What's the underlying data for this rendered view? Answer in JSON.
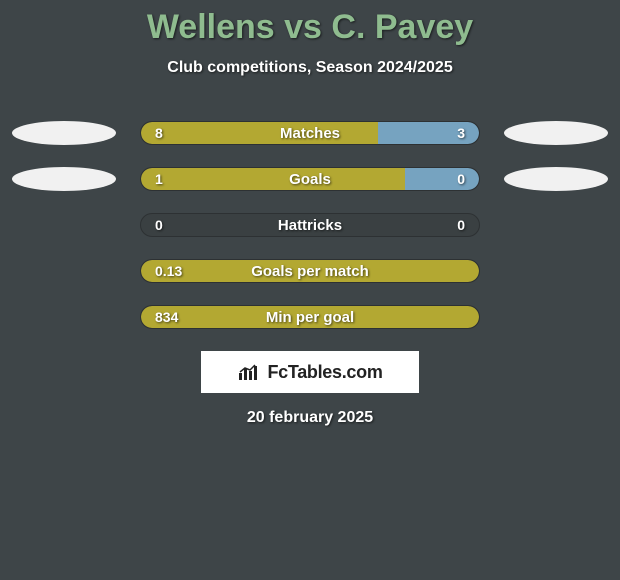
{
  "title": "Wellens vs C. Pavey",
  "subtitle": "Club competitions, Season 2024/2025",
  "date": "20 february 2025",
  "colors": {
    "background": "#3e4548",
    "title": "#8fbc8f",
    "bar_left": "#b3a832",
    "bar_right": "#76a3c0",
    "bar_empty": "#3a4042",
    "text": "#ffffff",
    "logo_bg": "#ffffff",
    "logo_text": "#222222"
  },
  "logo_text": "FcTables.com",
  "stats": [
    {
      "label": "Matches",
      "left_value": "8",
      "right_value": "3",
      "left_pct": 70,
      "right_pct": 30,
      "show_avatars": true,
      "right_color": "#76a3c0"
    },
    {
      "label": "Goals",
      "left_value": "1",
      "right_value": "0",
      "left_pct": 78,
      "right_pct": 22,
      "show_avatars": true,
      "right_color": "#76a3c0"
    },
    {
      "label": "Hattricks",
      "left_value": "0",
      "right_value": "0",
      "left_pct": 0,
      "right_pct": 0,
      "show_avatars": false,
      "right_color": null
    },
    {
      "label": "Goals per match",
      "left_value": "0.13",
      "right_value": "",
      "left_pct": 100,
      "right_pct": 0,
      "show_avatars": false,
      "right_color": null
    },
    {
      "label": "Min per goal",
      "left_value": "834",
      "right_value": "",
      "left_pct": 100,
      "right_pct": 0,
      "show_avatars": false,
      "right_color": null
    }
  ]
}
